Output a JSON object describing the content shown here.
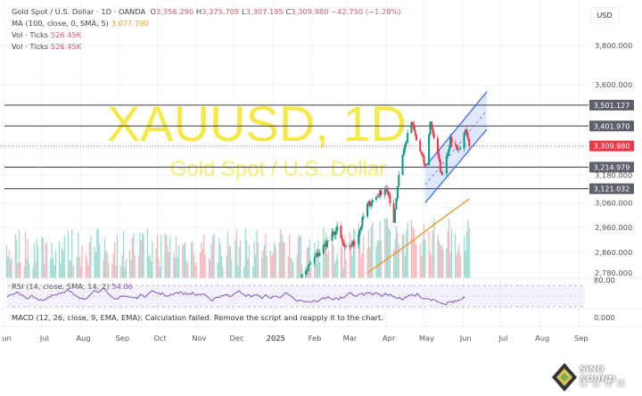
{
  "legend": {
    "symbol": "Gold Spot / U.S. Dollar · 1D · OANDA",
    "open_label": "O",
    "open": "3,356.290",
    "high_label": "H",
    "high": "3,375.705",
    "low_label": "L",
    "low": "3,307.195",
    "close_label": "C",
    "close": "3,309.980",
    "change": "−42.750 (−1.28%)",
    "ma_label": "MA (100, close, 0, SMA, 5)",
    "ma_value": "3,077.790",
    "vol1_label": "Vol · Ticks",
    "vol1_value": "526.45K",
    "vol2_label": "Vol · Ticks",
    "vol2_value": "526.45K"
  },
  "currency": "USD",
  "watermark": {
    "ticker": "XAUUSD, 1D",
    "name": "Gold Spot / U.S. Dollar"
  },
  "rsi": {
    "label": "RSI (14, close, SMA, 14, 2)",
    "value": "54.06",
    "scale_label": "80.00"
  },
  "macd": {
    "label": "MACD (12, 26, close, 9, EMA, EMA): Calculation failed. Remove the script and reapply it to the chart.",
    "scale_label": "0.000"
  },
  "logo": {
    "text": "SiNO SOUND",
    "cn": "漢聲集團"
  },
  "colors": {
    "up": "#089981",
    "down": "#f23645",
    "ma": "#f0942a",
    "rsi": "#7e57c2",
    "channel": "#2962ff",
    "level": "#363a45",
    "last_price": "#f23645",
    "watermark": "#f5e84a"
  },
  "chart_data": {
    "type": "candlestick",
    "symbol": "XAUUSD",
    "interval": "1D",
    "y_scale": "log",
    "ylim": [
      2760,
      3850
    ],
    "grid": true,
    "price_ticks": [
      "3,800.000",
      "3,600.000",
      "3,180.000",
      "3,060.000",
      "2,960.000",
      "2,860.000",
      "2,780.000"
    ],
    "price_tick_values": [
      3800,
      3600,
      3180,
      3060,
      2960,
      2860,
      2780
    ],
    "x_ticks": [
      {
        "label": "un",
        "date": "2024-06-01"
      },
      {
        "label": "Jul",
        "date": "2024-07-01"
      },
      {
        "label": "Aug",
        "date": "2024-08-01"
      },
      {
        "label": "Sep",
        "date": "2024-09-01"
      },
      {
        "label": "Oct",
        "date": "2024-10-01"
      },
      {
        "label": "Nov",
        "date": "2024-11-01"
      },
      {
        "label": "Dec",
        "date": "2024-12-01"
      },
      {
        "label": "2025",
        "date": "2025-01-01"
      },
      {
        "label": "Feb",
        "date": "2025-02-01"
      },
      {
        "label": "Mar",
        "date": "2025-03-01"
      },
      {
        "label": "Apr",
        "date": "2025-04-01"
      },
      {
        "label": "May",
        "date": "2025-05-01"
      },
      {
        "label": "Jun",
        "date": "2025-06-01"
      },
      {
        "label": "Jul",
        "date": "2025-07-01"
      },
      {
        "label": "Aug",
        "date": "2025-08-01"
      },
      {
        "label": "Sep",
        "date": "2025-09-01"
      }
    ],
    "approx_closes": [
      [
        "2025-01-20",
        2740
      ],
      [
        "2025-01-25",
        2775
      ],
      [
        "2025-02-21",
        2953
      ],
      [
        "2025-02-27",
        2870
      ],
      [
        "2025-03-08",
        2905
      ],
      [
        "2025-03-17",
        3051
      ],
      [
        "2025-04-01",
        3127
      ],
      [
        "2025-04-07",
        2989
      ],
      [
        "2025-04-12",
        3232
      ],
      [
        "2025-04-21",
        3420
      ],
      [
        "2025-04-25",
        3336
      ],
      [
        "2025-05-02",
        3217
      ],
      [
        "2025-05-06",
        3420
      ],
      [
        "2025-05-10",
        3325
      ],
      [
        "2025-05-15",
        3177
      ],
      [
        "2025-05-22",
        3336
      ],
      [
        "2025-05-29",
        3293
      ],
      [
        "2025-06-03",
        3375
      ],
      [
        "2025-06-06",
        3309.98
      ]
    ],
    "moving_average": {
      "name": "MA (100, close, 0, SMA, 5)",
      "points": [
        [
          "2025-03-17",
          2780
        ],
        [
          "2025-04-15",
          2880
        ],
        [
          "2025-05-10",
          2975
        ],
        [
          "2025-06-06",
          3077.79
        ]
      ]
    },
    "levels": [
      {
        "value": 3501.127,
        "label": "3,501.127"
      },
      {
        "value": 3401.97,
        "label": "3,401.970"
      },
      {
        "value": 3214.979,
        "label": "3,214.979"
      },
      {
        "value": 3121.032,
        "label": "3,121.032"
      }
    ],
    "last_price": {
      "value": 3309.98,
      "label": "3,309.980"
    },
    "channel": {
      "upper": [
        [
          "2025-05-02",
          3217
        ],
        [
          "2025-06-20",
          3566
        ]
      ],
      "lower": [
        [
          "2025-05-02",
          3062
        ],
        [
          "2025-06-20",
          3387
        ]
      ]
    }
  }
}
